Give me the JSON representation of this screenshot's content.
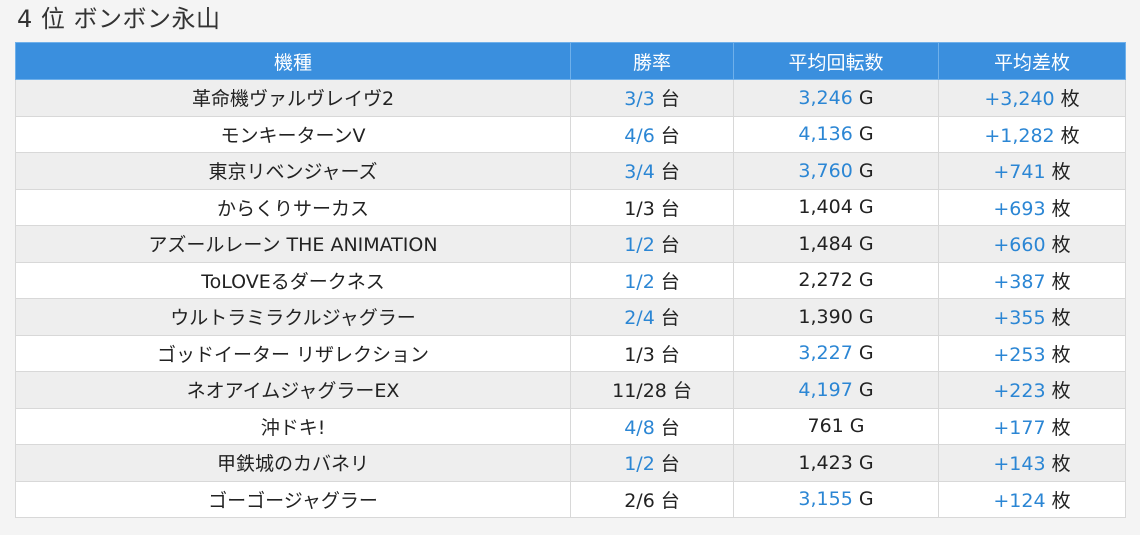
{
  "page": {
    "title": "4 位 ボンボン永山"
  },
  "colors": {
    "header_bg": "#3a8fde",
    "header_text": "#ffffff",
    "highlight_value": "#2b86d4",
    "row_stripe": "#eeeeee"
  },
  "table": {
    "headers": {
      "name": "機種",
      "win_rate": "勝率",
      "avg_spins": "平均回転数",
      "avg_diff": "平均差枚"
    },
    "units": {
      "win_rate": "台",
      "avg_spins": "G",
      "avg_diff": "枚"
    },
    "rows": [
      {
        "name": "革命機ヴァルヴレイヴ2",
        "win_rate": "3/3",
        "win_rate_highlight": true,
        "avg_spins": "3,246",
        "avg_spins_highlight": true,
        "avg_diff": "+3,240",
        "avg_diff_highlight": true
      },
      {
        "name": "モンキーターンV",
        "win_rate": "4/6",
        "win_rate_highlight": true,
        "avg_spins": "4,136",
        "avg_spins_highlight": true,
        "avg_diff": "+1,282",
        "avg_diff_highlight": true
      },
      {
        "name": "東京リベンジャーズ",
        "win_rate": "3/4",
        "win_rate_highlight": true,
        "avg_spins": "3,760",
        "avg_spins_highlight": true,
        "avg_diff": "+741",
        "avg_diff_highlight": true
      },
      {
        "name": "からくりサーカス",
        "win_rate": "1/3",
        "win_rate_highlight": false,
        "avg_spins": "1,404",
        "avg_spins_highlight": false,
        "avg_diff": "+693",
        "avg_diff_highlight": true
      },
      {
        "name": "アズールレーン THE ANIMATION",
        "win_rate": "1/2",
        "win_rate_highlight": true,
        "avg_spins": "1,484",
        "avg_spins_highlight": false,
        "avg_diff": "+660",
        "avg_diff_highlight": true
      },
      {
        "name": "ToLOVEるダークネス",
        "win_rate": "1/2",
        "win_rate_highlight": true,
        "avg_spins": "2,272",
        "avg_spins_highlight": false,
        "avg_diff": "+387",
        "avg_diff_highlight": true
      },
      {
        "name": "ウルトラミラクルジャグラー",
        "win_rate": "2/4",
        "win_rate_highlight": true,
        "avg_spins": "1,390",
        "avg_spins_highlight": false,
        "avg_diff": "+355",
        "avg_diff_highlight": true
      },
      {
        "name": "ゴッドイーター リザレクション",
        "win_rate": "1/3",
        "win_rate_highlight": false,
        "avg_spins": "3,227",
        "avg_spins_highlight": true,
        "avg_diff": "+253",
        "avg_diff_highlight": true
      },
      {
        "name": "ネオアイムジャグラーEX",
        "win_rate": "11/28",
        "win_rate_highlight": false,
        "avg_spins": "4,197",
        "avg_spins_highlight": true,
        "avg_diff": "+223",
        "avg_diff_highlight": true
      },
      {
        "name": "沖ドキ!",
        "win_rate": "4/8",
        "win_rate_highlight": true,
        "avg_spins": "761",
        "avg_spins_highlight": false,
        "avg_diff": "+177",
        "avg_diff_highlight": true
      },
      {
        "name": "甲鉄城のカバネリ",
        "win_rate": "1/2",
        "win_rate_highlight": true,
        "avg_spins": "1,423",
        "avg_spins_highlight": false,
        "avg_diff": "+143",
        "avg_diff_highlight": true
      },
      {
        "name": "ゴーゴージャグラー",
        "win_rate": "2/6",
        "win_rate_highlight": false,
        "avg_spins": "3,155",
        "avg_spins_highlight": true,
        "avg_diff": "+124",
        "avg_diff_highlight": true
      }
    ]
  }
}
